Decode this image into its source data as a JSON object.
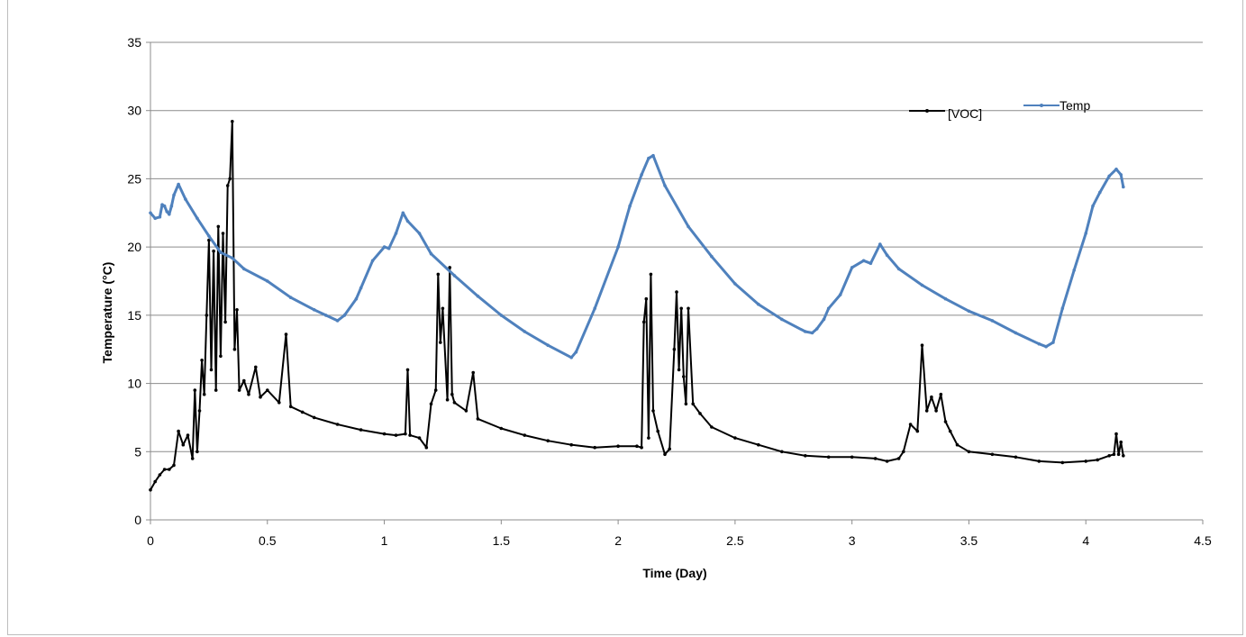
{
  "chart_data": {
    "type": "line",
    "title": "",
    "xlabel": "Time (Day)",
    "ylabel": "Temperature (°C)",
    "xlim": [
      0,
      4.5
    ],
    "ylim": [
      0,
      35
    ],
    "x_ticks": [
      "0",
      "0.5",
      "1",
      "1.5",
      "2",
      "2.5",
      "3",
      "3.5",
      "4",
      "4.5"
    ],
    "y_ticks": [
      "0",
      "5",
      "10",
      "15",
      "20",
      "25",
      "30",
      "35"
    ],
    "grid": "horizontal",
    "legend_placement": "top-right",
    "series": [
      {
        "name": "[VOC]",
        "color": "#000000",
        "x": [
          0,
          0.02,
          0.04,
          0.06,
          0.08,
          0.1,
          0.12,
          0.14,
          0.16,
          0.18,
          0.19,
          0.2,
          0.21,
          0.22,
          0.23,
          0.24,
          0.25,
          0.26,
          0.27,
          0.28,
          0.29,
          0.3,
          0.31,
          0.32,
          0.33,
          0.34,
          0.35,
          0.36,
          0.37,
          0.38,
          0.4,
          0.42,
          0.45,
          0.47,
          0.5,
          0.55,
          0.58,
          0.6,
          0.65,
          0.7,
          0.8,
          0.9,
          1.0,
          1.05,
          1.09,
          1.1,
          1.11,
          1.15,
          1.18,
          1.2,
          1.22,
          1.23,
          1.24,
          1.25,
          1.27,
          1.28,
          1.29,
          1.3,
          1.35,
          1.38,
          1.4,
          1.5,
          1.6,
          1.7,
          1.8,
          1.9,
          2.0,
          2.08,
          2.1,
          2.11,
          2.12,
          2.13,
          2.14,
          2.15,
          2.17,
          2.2,
          2.22,
          2.24,
          2.25,
          2.26,
          2.27,
          2.28,
          2.29,
          2.3,
          2.32,
          2.35,
          2.4,
          2.5,
          2.6,
          2.7,
          2.8,
          2.9,
          3.0,
          3.1,
          3.15,
          3.2,
          3.22,
          3.25,
          3.28,
          3.3,
          3.32,
          3.34,
          3.36,
          3.38,
          3.4,
          3.42,
          3.45,
          3.5,
          3.6,
          3.7,
          3.8,
          3.9,
          4.0,
          4.05,
          4.1,
          4.12,
          4.13,
          4.14,
          4.15,
          4.16
        ],
        "values": [
          2.2,
          2.8,
          3.3,
          3.7,
          3.7,
          4.0,
          6.5,
          5.5,
          6.2,
          4.5,
          9.5,
          5.0,
          8.0,
          11.7,
          9.2,
          15.0,
          20.5,
          11.0,
          19.7,
          9.5,
          21.5,
          12.0,
          21.0,
          14.5,
          24.5,
          25.0,
          29.2,
          12.5,
          15.4,
          9.5,
          10.2,
          9.2,
          11.2,
          9.0,
          9.5,
          8.6,
          13.6,
          8.3,
          7.9,
          7.5,
          7.0,
          6.6,
          6.3,
          6.2,
          6.3,
          11.0,
          6.2,
          6.0,
          5.3,
          8.5,
          9.5,
          18.0,
          13.0,
          15.5,
          8.8,
          18.5,
          9.2,
          8.6,
          8.0,
          10.8,
          7.4,
          6.7,
          6.2,
          5.8,
          5.5,
          5.3,
          5.4,
          5.4,
          5.3,
          14.5,
          16.2,
          6.0,
          18.0,
          8.0,
          6.5,
          4.8,
          5.2,
          12.5,
          16.7,
          11.0,
          15.5,
          10.5,
          8.5,
          15.5,
          8.5,
          7.8,
          6.8,
          6.0,
          5.5,
          5.0,
          4.7,
          4.6,
          4.6,
          4.5,
          4.3,
          4.5,
          5.0,
          7.0,
          6.5,
          12.8,
          8.0,
          9.0,
          8.0,
          9.2,
          7.2,
          6.5,
          5.5,
          5.0,
          4.8,
          4.6,
          4.3,
          4.2,
          4.3,
          4.4,
          4.7,
          4.8,
          6.3,
          4.8,
          5.7,
          4.7
        ]
      },
      {
        "name": "Temp",
        "color": "#4f81bd",
        "x": [
          0,
          0.02,
          0.04,
          0.05,
          0.06,
          0.07,
          0.08,
          0.09,
          0.1,
          0.12,
          0.15,
          0.2,
          0.25,
          0.3,
          0.35,
          0.4,
          0.5,
          0.6,
          0.7,
          0.75,
          0.8,
          0.83,
          0.88,
          0.9,
          0.95,
          1.0,
          1.02,
          1.05,
          1.08,
          1.1,
          1.15,
          1.2,
          1.3,
          1.4,
          1.5,
          1.6,
          1.7,
          1.8,
          1.82,
          1.9,
          2.0,
          2.05,
          2.1,
          2.13,
          2.15,
          2.2,
          2.3,
          2.4,
          2.5,
          2.6,
          2.7,
          2.8,
          2.83,
          2.85,
          2.88,
          2.9,
          2.95,
          3.0,
          3.05,
          3.08,
          3.12,
          3.15,
          3.2,
          3.3,
          3.4,
          3.5,
          3.6,
          3.7,
          3.8,
          3.83,
          3.86,
          3.9,
          3.95,
          4.0,
          4.03,
          4.06,
          4.1,
          4.13,
          4.15,
          4.16
        ],
        "values": [
          22.5,
          22.1,
          22.2,
          23.1,
          23.0,
          22.6,
          22.4,
          23.0,
          23.8,
          24.6,
          23.5,
          22.1,
          20.8,
          19.6,
          19.2,
          18.4,
          17.5,
          16.3,
          15.4,
          15.0,
          14.6,
          15.0,
          16.2,
          17.0,
          19.0,
          20.0,
          19.9,
          21.0,
          22.5,
          21.9,
          21.0,
          19.5,
          17.9,
          16.4,
          15.0,
          13.8,
          12.8,
          11.9,
          12.3,
          15.5,
          20.0,
          23.0,
          25.3,
          26.5,
          26.7,
          24.5,
          21.5,
          19.3,
          17.3,
          15.8,
          14.7,
          13.8,
          13.7,
          14.0,
          14.7,
          15.5,
          16.5,
          18.5,
          19.0,
          18.8,
          20.2,
          19.4,
          18.4,
          17.2,
          16.2,
          15.3,
          14.6,
          13.7,
          12.9,
          12.7,
          13.0,
          15.5,
          18.3,
          21.0,
          23.0,
          24.0,
          25.2,
          25.7,
          25.3,
          24.4
        ]
      }
    ]
  }
}
